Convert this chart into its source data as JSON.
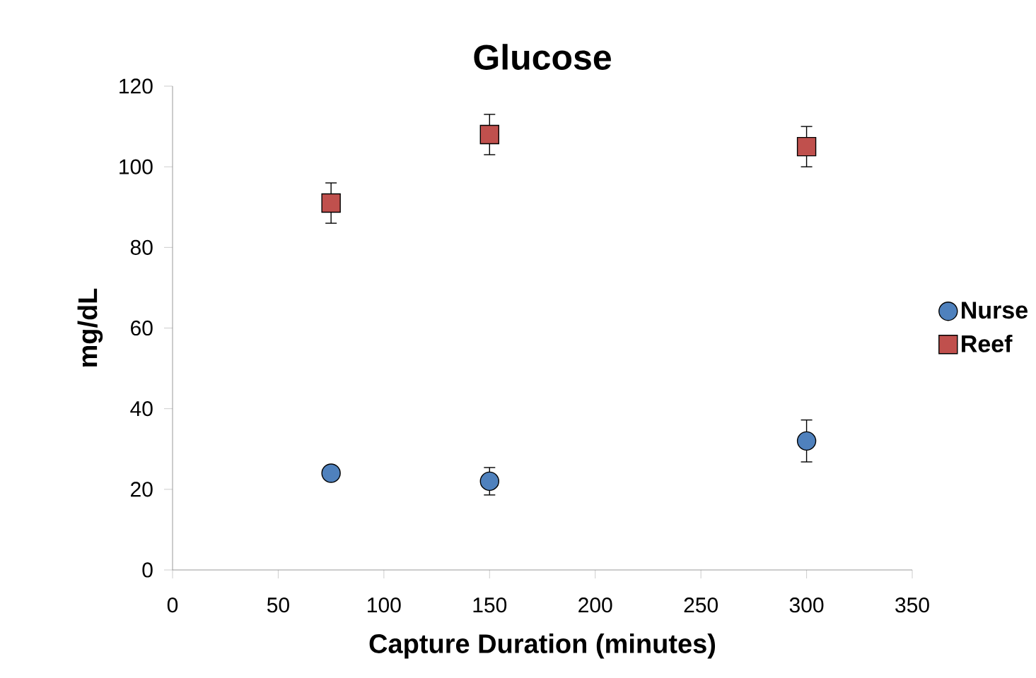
{
  "chart_data": {
    "type": "scatter",
    "title": "Glucose",
    "xlabel": "Capture Duration (minutes)",
    "ylabel": "mg/dL",
    "xlim": [
      0,
      350
    ],
    "xticks": [
      0,
      50,
      100,
      150,
      200,
      250,
      300,
      350
    ],
    "ylim": [
      0,
      120
    ],
    "yticks": [
      0,
      20,
      40,
      60,
      80,
      100,
      120
    ],
    "legend": "right",
    "series": [
      {
        "name": "Nurse",
        "color": "#4f81bd",
        "marker": "circle",
        "x": [
          75,
          150,
          300
        ],
        "values": [
          24,
          22,
          32
        ],
        "errors": [
          null,
          3.4,
          5.2
        ]
      },
      {
        "name": "Reef",
        "color": "#c0504d",
        "marker": "square",
        "x": [
          75,
          150,
          300
        ],
        "values": [
          91,
          108,
          105
        ],
        "errors": [
          5,
          5,
          5
        ]
      }
    ]
  }
}
